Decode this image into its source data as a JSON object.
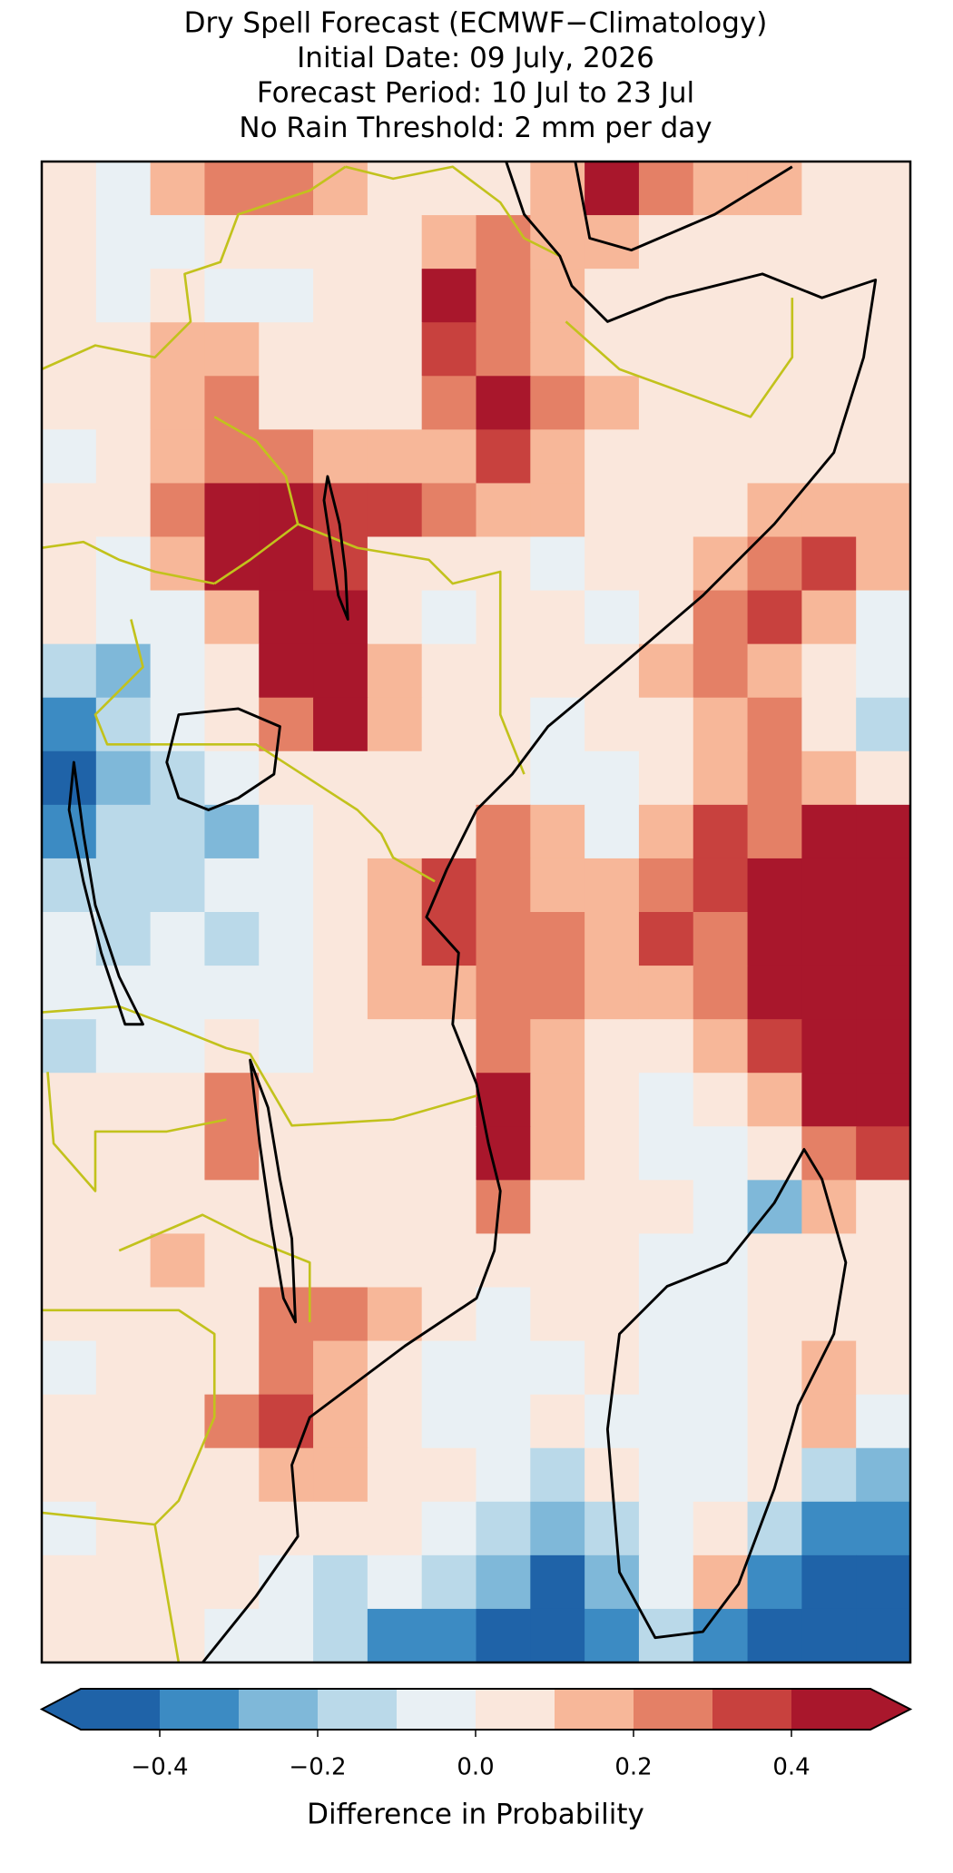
{
  "chart_data": {
    "type": "heatmap",
    "title": [
      "Dry Spell Forecast (ECMWF−Climatology)",
      "Initial Date: 09 July, 2026",
      "Forecast Period: 10 Jul to 23 Jul",
      "No Rain Threshold: 2 mm per day"
    ],
    "colorbar_label": "Difference in Probability",
    "levels": [
      -0.5,
      -0.4,
      -0.3,
      -0.2,
      -0.1,
      0,
      0.1,
      0.2,
      0.3,
      0.4,
      0.5
    ],
    "colors": [
      "#1f63a8",
      "#3c8bc3",
      "#7fb8d9",
      "#bad9e9",
      "#e9f0f4",
      "#fae7dc",
      "#f7b799",
      "#e48066",
      "#c8413e",
      "#a9172c"
    ],
    "ticks": [
      {
        "value": -0.4,
        "label": "−0.4"
      },
      {
        "value": -0.2,
        "label": "−0.2"
      },
      {
        "value": 0,
        "label": "0.0"
      },
      0.2,
      0.4
    ],
    "grid": [
      [
        0.05,
        -0.05,
        0.15,
        0.25,
        0.25,
        0.15,
        0.05,
        0.05,
        0.05,
        0.15,
        0.45,
        0.25,
        0.15,
        0.15,
        0.05,
        0.05
      ],
      [
        0.05,
        -0.05,
        -0.05,
        0.05,
        0.05,
        0.05,
        0.05,
        0.15,
        0.25,
        0.15,
        0.15,
        0.05,
        0.05,
        0.05,
        0.05,
        0.05
      ],
      [
        0.05,
        -0.05,
        0.05,
        -0.05,
        -0.05,
        0.05,
        0.05,
        0.45,
        0.25,
        0.15,
        0.05,
        0.05,
        0.05,
        0.05,
        0.05,
        0.05
      ],
      [
        0.05,
        0.05,
        0.15,
        0.15,
        0.05,
        0.05,
        0.05,
        0.35,
        0.25,
        0.15,
        0.05,
        0.05,
        0.05,
        0.05,
        0.05,
        0.05
      ],
      [
        0.05,
        0.05,
        0.15,
        0.25,
        0.05,
        0.05,
        0.05,
        0.25,
        0.45,
        0.25,
        0.15,
        0.05,
        0.05,
        0.05,
        0.05,
        0.05
      ],
      [
        -0.05,
        0.05,
        0.15,
        0.25,
        0.25,
        0.15,
        0.15,
        0.15,
        0.35,
        0.15,
        0.05,
        0.05,
        0.05,
        0.05,
        0.05,
        0.05
      ],
      [
        0.05,
        0.05,
        0.25,
        0.45,
        0.45,
        0.35,
        0.35,
        0.25,
        0.15,
        0.15,
        0.05,
        0.05,
        0.05,
        0.15,
        0.15,
        0.15
      ],
      [
        0.05,
        -0.05,
        0.15,
        0.45,
        0.45,
        0.35,
        0.05,
        0.05,
        0.05,
        -0.05,
        0.05,
        0.05,
        0.15,
        0.25,
        0.35,
        0.15
      ],
      [
        0.05,
        -0.05,
        -0.05,
        0.15,
        0.45,
        0.45,
        0.05,
        -0.05,
        0.05,
        0.05,
        -0.05,
        0.05,
        0.25,
        0.35,
        0.15,
        -0.05
      ],
      [
        -0.15,
        -0.25,
        -0.05,
        0.05,
        0.45,
        0.45,
        0.15,
        0.05,
        0.05,
        0.05,
        0.05,
        0.15,
        0.25,
        0.15,
        0.05,
        -0.05
      ],
      [
        -0.35,
        -0.15,
        -0.05,
        0.05,
        0.25,
        0.45,
        0.15,
        0.05,
        0.05,
        -0.05,
        0.05,
        0.05,
        0.15,
        0.25,
        0.05,
        -0.15
      ],
      [
        -0.45,
        -0.25,
        -0.15,
        -0.05,
        0.05,
        0.05,
        0.05,
        0.05,
        0.05,
        -0.05,
        -0.05,
        0.05,
        0.15,
        0.25,
        0.15,
        0.05
      ],
      [
        -0.35,
        -0.15,
        -0.15,
        -0.25,
        -0.05,
        0.05,
        0.05,
        0.05,
        0.25,
        0.15,
        -0.05,
        0.15,
        0.35,
        0.25,
        0.45,
        0.45
      ],
      [
        -0.15,
        -0.15,
        -0.15,
        -0.05,
        -0.05,
        0.05,
        0.15,
        0.35,
        0.25,
        0.15,
        0.15,
        0.25,
        0.35,
        0.45,
        0.45,
        0.45
      ],
      [
        -0.05,
        -0.15,
        -0.05,
        -0.15,
        -0.05,
        0.05,
        0.15,
        0.35,
        0.25,
        0.25,
        0.15,
        0.35,
        0.25,
        0.45,
        0.45,
        0.45
      ],
      [
        -0.05,
        -0.05,
        -0.05,
        -0.05,
        -0.05,
        0.05,
        0.15,
        0.15,
        0.25,
        0.25,
        0.15,
        0.15,
        0.25,
        0.45,
        0.45,
        0.45
      ],
      [
        -0.15,
        -0.05,
        -0.05,
        0.05,
        -0.05,
        0.05,
        0.05,
        0.05,
        0.25,
        0.15,
        0.05,
        0.05,
        0.15,
        0.35,
        0.45,
        0.45
      ],
      [
        0.05,
        0.05,
        0.05,
        0.25,
        0.05,
        0.05,
        0.05,
        0.05,
        0.45,
        0.15,
        0.05,
        -0.05,
        0.05,
        0.15,
        0.45,
        0.45
      ],
      [
        0.05,
        0.05,
        0.05,
        0.25,
        0.05,
        0.05,
        0.05,
        0.05,
        0.45,
        0.15,
        0.05,
        -0.05,
        -0.05,
        0.05,
        0.25,
        0.35
      ],
      [
        0.05,
        0.05,
        0.05,
        0.05,
        0.05,
        0.05,
        0.05,
        0.05,
        0.25,
        0.05,
        0.05,
        0.05,
        -0.05,
        -0.25,
        0.15,
        0.05
      ],
      [
        0.05,
        0.05,
        0.15,
        0.05,
        0.05,
        0.05,
        0.05,
        0.05,
        0.05,
        0.05,
        0.05,
        -0.05,
        -0.05,
        0.05,
        0.05,
        0.05
      ],
      [
        0.05,
        0.05,
        0.05,
        0.05,
        0.25,
        0.25,
        0.15,
        0.05,
        -0.05,
        0.05,
        0.05,
        -0.05,
        -0.05,
        0.05,
        0.05,
        0.05
      ],
      [
        -0.05,
        0.05,
        0.05,
        0.05,
        0.25,
        0.15,
        0.05,
        -0.05,
        -0.05,
        -0.05,
        0.05,
        -0.05,
        -0.05,
        0.05,
        0.15,
        0.05
      ],
      [
        0.05,
        0.05,
        0.05,
        0.25,
        0.35,
        0.15,
        0.05,
        -0.05,
        -0.05,
        0.05,
        -0.05,
        -0.05,
        -0.05,
        0.05,
        0.15,
        -0.05
      ],
      [
        0.05,
        0.05,
        0.05,
        0.05,
        0.15,
        0.15,
        0.05,
        0.05,
        -0.05,
        -0.15,
        0.05,
        -0.05,
        -0.05,
        0.05,
        -0.15,
        -0.25
      ],
      [
        -0.05,
        0.05,
        0.05,
        0.05,
        0.05,
        0.05,
        0.05,
        -0.05,
        -0.15,
        -0.25,
        -0.15,
        -0.05,
        0.05,
        -0.15,
        -0.35,
        -0.35
      ],
      [
        0.05,
        0.05,
        0.05,
        0.05,
        -0.05,
        -0.15,
        -0.05,
        -0.15,
        -0.25,
        -0.45,
        -0.25,
        -0.05,
        0.15,
        -0.35,
        -0.45,
        -0.45
      ],
      [
        0.05,
        0.05,
        0.05,
        -0.05,
        -0.05,
        -0.15,
        -0.35,
        -0.35,
        -0.45,
        -0.45,
        -0.35,
        -0.15,
        -0.35,
        -0.45,
        -0.45,
        -0.45
      ]
    ]
  }
}
